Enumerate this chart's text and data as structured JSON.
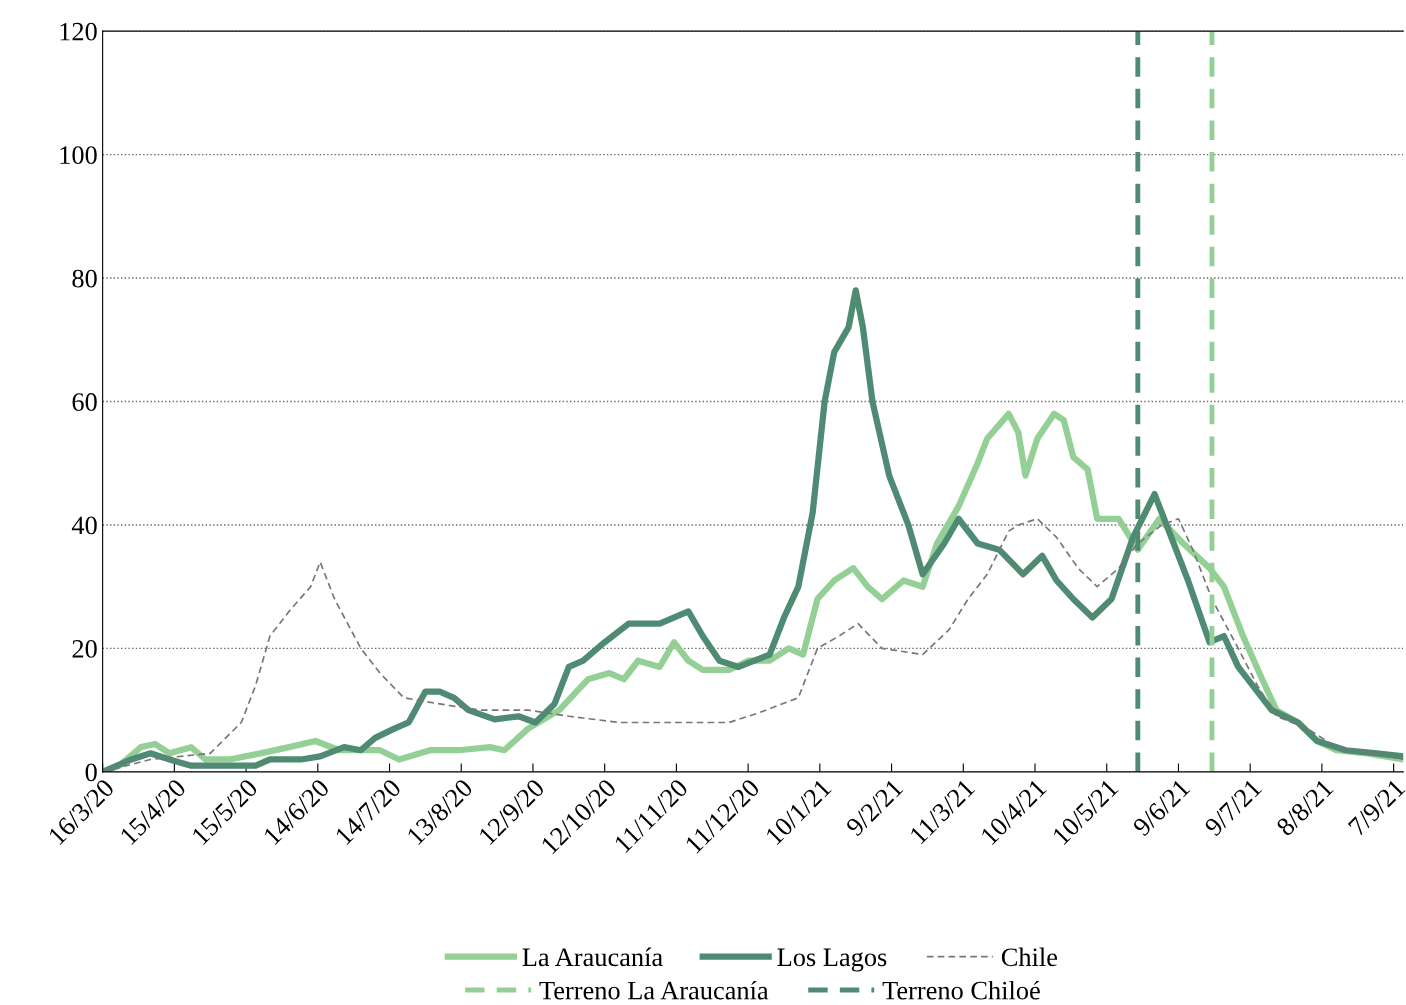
{
  "chart_data": {
    "type": "line",
    "xlim": [
      "2020-03-16",
      "2021-09-11"
    ],
    "ylim": [
      0,
      120
    ],
    "yticks": [
      0,
      20,
      40,
      60,
      80,
      100,
      120
    ],
    "xticks": [
      {
        "value": "2020-03-16",
        "label": "16/3/20"
      },
      {
        "value": "2020-04-15",
        "label": "15/4/20"
      },
      {
        "value": "2020-05-15",
        "label": "15/5/20"
      },
      {
        "value": "2020-06-14",
        "label": "14/6/20"
      },
      {
        "value": "2020-07-14",
        "label": "14/7/20"
      },
      {
        "value": "2020-08-13",
        "label": "13/8/20"
      },
      {
        "value": "2020-09-12",
        "label": "12/9/20"
      },
      {
        "value": "2020-10-12",
        "label": "12/10/20"
      },
      {
        "value": "2020-11-11",
        "label": "11/11/20"
      },
      {
        "value": "2020-12-11",
        "label": "11/12/20"
      },
      {
        "value": "2021-01-10",
        "label": "10/1/21"
      },
      {
        "value": "2021-02-09",
        "label": "9/2/21"
      },
      {
        "value": "2021-03-11",
        "label": "11/3/21"
      },
      {
        "value": "2021-04-10",
        "label": "10/4/21"
      },
      {
        "value": "2021-05-10",
        "label": "10/5/21"
      },
      {
        "value": "2021-06-09",
        "label": "9/6/21"
      },
      {
        "value": "2021-07-09",
        "label": "9/7/21"
      },
      {
        "value": "2021-08-08",
        "label": "8/8/21"
      },
      {
        "value": "2021-09-07",
        "label": "7/9/21"
      }
    ],
    "grid": "y",
    "legend": "bottom",
    "marker": "none",
    "series": [
      {
        "name": "La Araucanía",
        "color": "#94d095",
        "line_style": "solid",
        "x": [
          "2020-03-16",
          "2020-03-23",
          "2020-04-01",
          "2020-04-07",
          "2020-04-13",
          "2020-04-22",
          "2020-04-28",
          "2020-05-08",
          "2020-05-21",
          "2020-06-02",
          "2020-06-13",
          "2020-06-23",
          "2020-07-10",
          "2020-07-18",
          "2020-07-31",
          "2020-08-12",
          "2020-08-25",
          "2020-08-31",
          "2020-09-10",
          "2020-09-23",
          "2020-10-05",
          "2020-10-14",
          "2020-10-20",
          "2020-10-26",
          "2020-11-04",
          "2020-11-10",
          "2020-11-16",
          "2020-11-22",
          "2020-12-03",
          "2020-12-11",
          "2020-12-20",
          "2020-12-28",
          "2021-01-03",
          "2021-01-09",
          "2021-01-16",
          "2021-01-24",
          "2021-01-30",
          "2021-02-05",
          "2021-02-14",
          "2021-02-22",
          "2021-02-28",
          "2021-03-09",
          "2021-03-17",
          "2021-03-21",
          "2021-03-30",
          "2021-04-03",
          "2021-04-06",
          "2021-04-11",
          "2021-04-18",
          "2021-04-22",
          "2021-04-26",
          "2021-05-02",
          "2021-05-06",
          "2021-05-15",
          "2021-05-23",
          "2021-06-01",
          "2021-06-11",
          "2021-06-22",
          "2021-06-28",
          "2021-07-06",
          "2021-07-14",
          "2021-07-20",
          "2021-07-29",
          "2021-08-06",
          "2021-08-14",
          "2021-08-27",
          "2021-09-11"
        ],
        "values": [
          0,
          1,
          4,
          4.5,
          3,
          4,
          2,
          2,
          3,
          4,
          5,
          3.5,
          3.5,
          2,
          3.5,
          3.5,
          4,
          3.5,
          7,
          10,
          15,
          16,
          15,
          18,
          17,
          21,
          18,
          16.5,
          16.5,
          18,
          18,
          20,
          19,
          28,
          31,
          33,
          30,
          28,
          31,
          30,
          37,
          43,
          50,
          54,
          58,
          55,
          48,
          54,
          58,
          57,
          51,
          49,
          41,
          41,
          36,
          41,
          37,
          33,
          30,
          22,
          15,
          10,
          8,
          5,
          3.5,
          3,
          2
        ]
      },
      {
        "name": "Los Lagos",
        "color": "#4e8b72",
        "line_style": "solid",
        "x": [
          "2020-03-16",
          "2020-03-28",
          "2020-04-05",
          "2020-04-13",
          "2020-04-22",
          "2020-05-08",
          "2020-05-19",
          "2020-05-25",
          "2020-06-07",
          "2020-06-15",
          "2020-06-25",
          "2020-07-02",
          "2020-07-08",
          "2020-07-16",
          "2020-07-22",
          "2020-07-29",
          "2020-08-04",
          "2020-08-10",
          "2020-08-16",
          "2020-08-27",
          "2020-09-06",
          "2020-09-13",
          "2020-09-21",
          "2020-09-27",
          "2020-10-03",
          "2020-10-12",
          "2020-10-22",
          "2020-11-04",
          "2020-11-16",
          "2020-11-22",
          "2020-11-29",
          "2020-12-07",
          "2020-12-20",
          "2020-12-26",
          "2021-01-01",
          "2021-01-07",
          "2021-01-12",
          "2021-01-16",
          "2021-01-22",
          "2021-01-25",
          "2021-01-28",
          "2021-02-01",
          "2021-02-08",
          "2021-02-16",
          "2021-02-22",
          "2021-03-03",
          "2021-03-09",
          "2021-03-17",
          "2021-03-26",
          "2021-04-05",
          "2021-04-13",
          "2021-04-19",
          "2021-04-26",
          "2021-05-04",
          "2021-05-12",
          "2021-05-21",
          "2021-05-30",
          "2021-06-04",
          "2021-06-13",
          "2021-06-22",
          "2021-06-28",
          "2021-07-04",
          "2021-07-10",
          "2021-07-18",
          "2021-07-29",
          "2021-08-06",
          "2021-08-18",
          "2021-08-31",
          "2021-09-11"
        ],
        "values": [
          0,
          2,
          3,
          2,
          1,
          1,
          1,
          2,
          2,
          2.5,
          4,
          3.5,
          5.5,
          7,
          8,
          13,
          13,
          12,
          10,
          8.5,
          9,
          8,
          11,
          17,
          18,
          21,
          24,
          24,
          26,
          22,
          18,
          17,
          19,
          25,
          30,
          42,
          60,
          68,
          72,
          78,
          72,
          60,
          48,
          40,
          32,
          37,
          41,
          37,
          36,
          32,
          35,
          31,
          28,
          25,
          28,
          38,
          45,
          40,
          31,
          21,
          22,
          17,
          14,
          10,
          8,
          5,
          3.5,
          3,
          2.5
        ]
      },
      {
        "name": "Chile",
        "color": "#777777",
        "line_style": "dashed",
        "x": [
          "2020-03-16",
          "2020-04-05",
          "2020-04-30",
          "2020-05-13",
          "2020-05-19",
          "2020-05-25",
          "2020-06-02",
          "2020-06-11",
          "2020-06-15",
          "2020-06-21",
          "2020-07-02",
          "2020-07-10",
          "2020-07-20",
          "2020-08-04",
          "2020-08-21",
          "2020-09-10",
          "2020-09-27",
          "2020-10-18",
          "2020-11-12",
          "2020-12-03",
          "2020-12-15",
          "2021-01-01",
          "2021-01-09",
          "2021-01-18",
          "2021-01-26",
          "2021-02-05",
          "2021-02-22",
          "2021-03-05",
          "2021-03-13",
          "2021-03-21",
          "2021-03-30",
          "2021-04-03",
          "2021-04-11",
          "2021-04-19",
          "2021-04-28",
          "2021-05-06",
          "2021-05-15",
          "2021-05-23",
          "2021-06-02",
          "2021-06-09",
          "2021-06-15",
          "2021-06-23",
          "2021-07-04",
          "2021-07-12",
          "2021-07-20",
          "2021-08-02",
          "2021-08-14",
          "2021-08-31",
          "2021-09-11"
        ],
        "values": [
          0,
          2,
          3,
          8,
          14,
          22,
          26,
          30,
          34,
          28,
          20,
          16,
          12,
          11,
          10,
          10,
          9,
          8,
          8,
          8,
          9.5,
          12,
          20,
          22,
          24,
          20,
          19,
          23,
          28,
          32,
          39,
          40,
          41,
          38,
          33,
          30,
          33,
          37,
          40,
          41,
          36,
          28,
          20,
          14,
          9,
          7,
          4,
          3,
          2
        ]
      }
    ],
    "ref_lines": [
      {
        "axis": "x",
        "value": "2021-06-23",
        "label": "Terreno La Araucanía",
        "color": "#94d095",
        "line_style": "dashed"
      },
      {
        "axis": "x",
        "value": "2021-05-23",
        "label": "Terreno Chiloé",
        "color": "#4e8b72",
        "line_style": "dashed"
      }
    ]
  }
}
